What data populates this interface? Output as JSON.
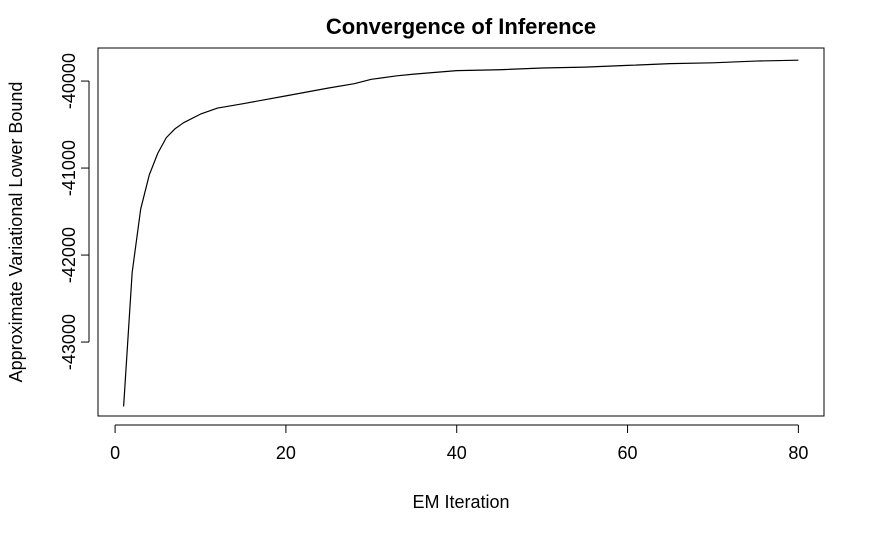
{
  "chart_data": {
    "type": "line",
    "title": "Convergence of Inference",
    "xlabel": "EM Iteration",
    "ylabel": "Approximate Variational Lower Bound",
    "xlim": [
      -2,
      83
    ],
    "ylim": [
      -43850,
      -39620
    ],
    "x_ticks": [
      0,
      20,
      40,
      60,
      80
    ],
    "x_tick_labels": [
      "0",
      "20",
      "40",
      "60",
      "80"
    ],
    "y_ticks": [
      -43000,
      -42000,
      -41000,
      -40000
    ],
    "y_tick_labels": [
      "-43000",
      "-42000",
      "-41000",
      "-40000"
    ],
    "grid": false,
    "legend": "none",
    "series": [
      {
        "color": "#000000",
        "x": [
          1,
          2,
          3,
          4,
          5,
          6,
          7,
          8,
          10,
          12,
          15,
          20,
          25,
          28,
          30,
          33,
          35,
          40,
          45,
          50,
          55,
          60,
          65,
          70,
          75,
          80
        ],
        "y": [
          -43740,
          -42200,
          -41470,
          -41080,
          -40830,
          -40650,
          -40550,
          -40480,
          -40380,
          -40310,
          -40260,
          -40170,
          -40080,
          -40030,
          -39980,
          -39940,
          -39920,
          -39880,
          -39870,
          -39850,
          -39840,
          -39820,
          -39800,
          -39790,
          -39770,
          -39760
        ]
      }
    ]
  }
}
